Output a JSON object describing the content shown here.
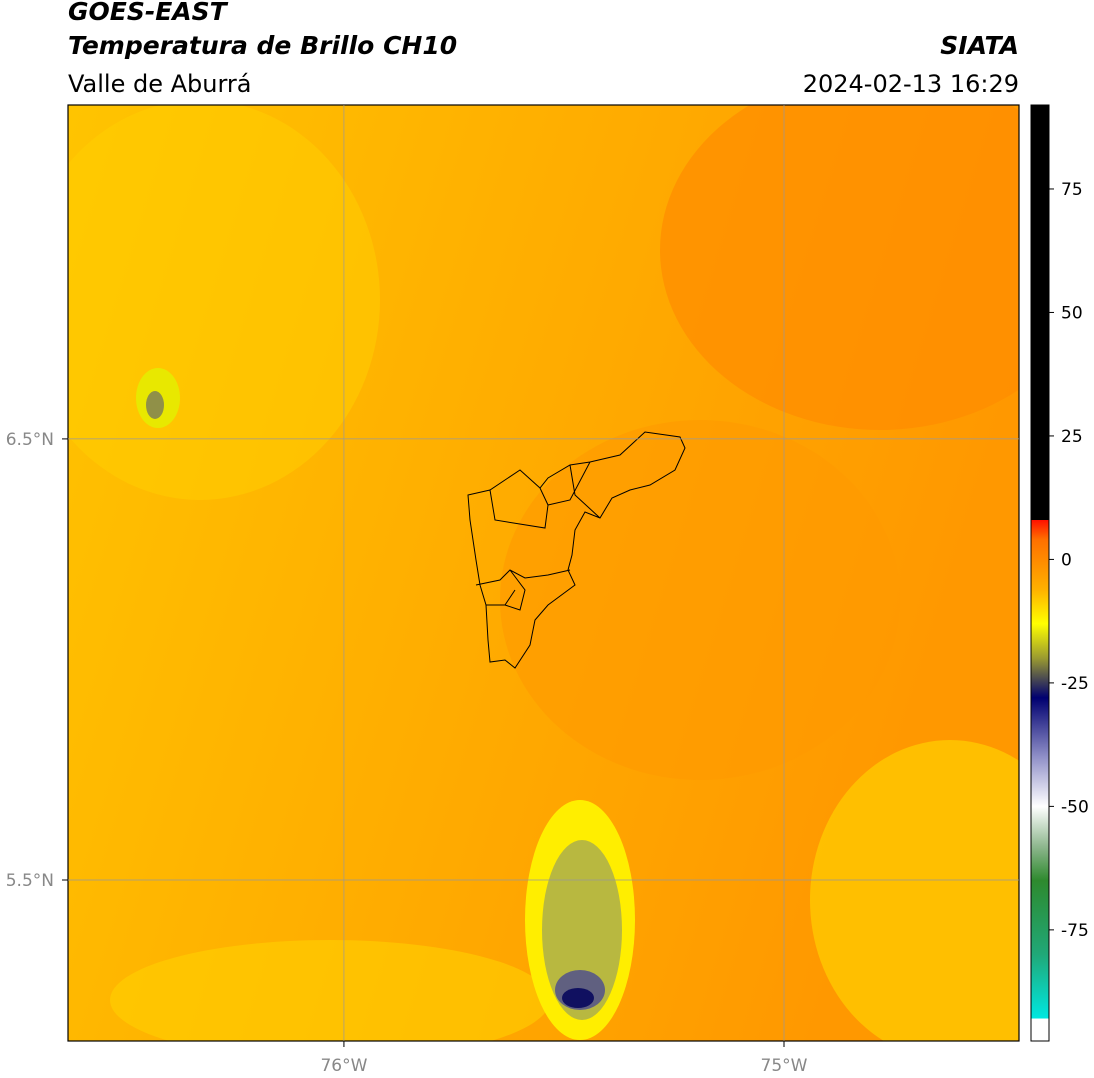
{
  "header": {
    "title": "GOES-EAST",
    "subtitle": "Temperatura de Brillo CH10",
    "region": "Valle de Aburrá",
    "source": "SIATA",
    "datetime": "2024-02-13 16:29"
  },
  "map": {
    "xlim": [
      -76.627,
      -74.466
    ],
    "ylim": [
      5.135,
      7.257
    ],
    "xticks": [
      {
        "value": -76,
        "label": "76°W"
      },
      {
        "value": -75,
        "label": "75°W"
      }
    ],
    "yticks": [
      {
        "value": 6.5,
        "label": "6.5°N"
      },
      {
        "value": 5.5,
        "label": "5.5°N"
      }
    ]
  },
  "colorbar": {
    "lim": [
      -97.5,
      92
    ],
    "ticks": [
      75,
      50,
      25,
      0,
      -25,
      -50,
      -75
    ],
    "stops": [
      {
        "value": -97.5,
        "color": "#ffffff"
      },
      {
        "value": -93,
        "color": "#ffffff"
      },
      {
        "value": -92.9,
        "color": "#00e8e0"
      },
      {
        "value": -80,
        "color": "#20a878"
      },
      {
        "value": -65,
        "color": "#2e8a2e"
      },
      {
        "value": -58,
        "color": "#90b890"
      },
      {
        "value": -50,
        "color": "#ffffff"
      },
      {
        "value": -40,
        "color": "#9090c8"
      },
      {
        "value": -28,
        "color": "#000070"
      },
      {
        "value": -20,
        "color": "#9a9a30"
      },
      {
        "value": -13,
        "color": "#ffff00"
      },
      {
        "value": -6,
        "color": "#ffb000"
      },
      {
        "value": 4,
        "color": "#ff7000"
      },
      {
        "value": 8,
        "color": "#ff1000"
      },
      {
        "value": 8.01,
        "color": "#000000"
      },
      {
        "value": 92,
        "color": "#000000"
      }
    ]
  }
}
